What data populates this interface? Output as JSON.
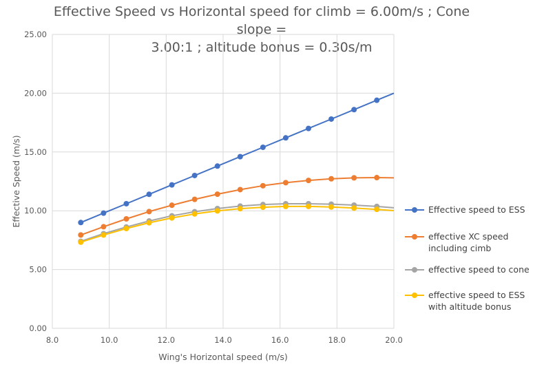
{
  "chart_data": {
    "type": "line",
    "title_line1": "Effective Speed vs Horizontal speed for climb = 6.00m/s ; Cone slope =",
    "title_line2": "3.00:1 ; altitude bonus = 0.30s/m",
    "xlabel": "Wing's Horizontal speed (m/s)",
    "ylabel": "Effective Speed (m/s)",
    "xlim": [
      8.0,
      20.0
    ],
    "ylim": [
      0.0,
      25.0
    ],
    "x_ticks": [
      "8.0",
      "10.0",
      "12.0",
      "14.0",
      "16.0",
      "18.0",
      "20.0"
    ],
    "y_ticks": [
      "0.00",
      "5.00",
      "10.00",
      "15.00",
      "20.00",
      "25.00"
    ],
    "grid": true,
    "legend_position": "right",
    "x": [
      9.0,
      9.8,
      10.6,
      11.4,
      12.2,
      13.0,
      13.8,
      14.6,
      15.4,
      16.2,
      17.0,
      17.8,
      18.6,
      19.4,
      20.0
    ],
    "marker_count": 14,
    "series": [
      {
        "name": "Effective speed to ESS",
        "color": "#4472C4",
        "values": [
          9.0,
          9.8,
          10.6,
          11.4,
          12.2,
          13.0,
          13.8,
          14.6,
          15.4,
          16.2,
          17.0,
          17.8,
          18.6,
          19.4,
          20.0
        ]
      },
      {
        "name": "effective XC speed including cimb",
        "color": "#ED7D31",
        "values": [
          7.94,
          8.64,
          9.31,
          9.93,
          10.47,
          10.97,
          11.41,
          11.8,
          12.13,
          12.39,
          12.58,
          12.72,
          12.8,
          12.82,
          12.8
        ]
      },
      {
        "name": "effective speed to cone",
        "color": "#A5A5A5",
        "values": [
          7.4,
          8.05,
          8.62,
          9.13,
          9.57,
          9.92,
          10.19,
          10.4,
          10.53,
          10.6,
          10.6,
          10.56,
          10.48,
          10.37,
          10.25
        ]
      },
      {
        "name": "effective speed to ESS with altitude bonus",
        "color": "#FFC000",
        "values": [
          7.33,
          7.94,
          8.49,
          8.98,
          9.39,
          9.73,
          9.99,
          10.18,
          10.3,
          10.37,
          10.37,
          10.32,
          10.23,
          10.12,
          10.01
        ]
      }
    ]
  },
  "legend": {
    "items": [
      {
        "label": "Effective speed to ESS",
        "color": "#4472C4"
      },
      {
        "label": "effective XC speed including cimb",
        "color": "#ED7D31"
      },
      {
        "label": "effective speed to cone",
        "color": "#A5A5A5"
      },
      {
        "label": "effective speed to ESS with altitude bonus",
        "color": "#FFC000"
      }
    ]
  }
}
